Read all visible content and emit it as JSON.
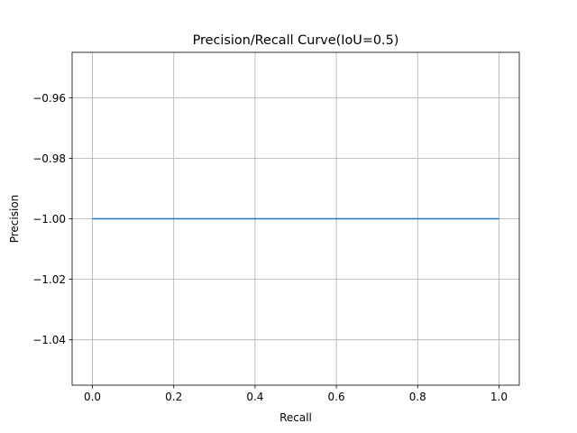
{
  "chart_data": {
    "type": "line",
    "title": "Precision/Recall Curve(IoU=0.5)",
    "xlabel": "Recall",
    "ylabel": "Precision",
    "xlim": [
      -0.05,
      1.05
    ],
    "ylim": [
      -1.055,
      -0.945
    ],
    "xticks": [
      0.0,
      0.2,
      0.4,
      0.6,
      0.8,
      1.0
    ],
    "xtick_labels": [
      "0.0",
      "0.2",
      "0.4",
      "0.6",
      "0.8",
      "1.0"
    ],
    "yticks": [
      -0.96,
      -0.98,
      -1.0,
      -1.02,
      -1.04
    ],
    "ytick_labels": [
      "−0.96",
      "−0.98",
      "−1.00",
      "−1.02",
      "−1.04"
    ],
    "grid": true,
    "series": [
      {
        "color": "#1f77b4",
        "x": [
          0.0,
          1.0
        ],
        "y": [
          -1.0,
          -1.0
        ]
      }
    ]
  }
}
